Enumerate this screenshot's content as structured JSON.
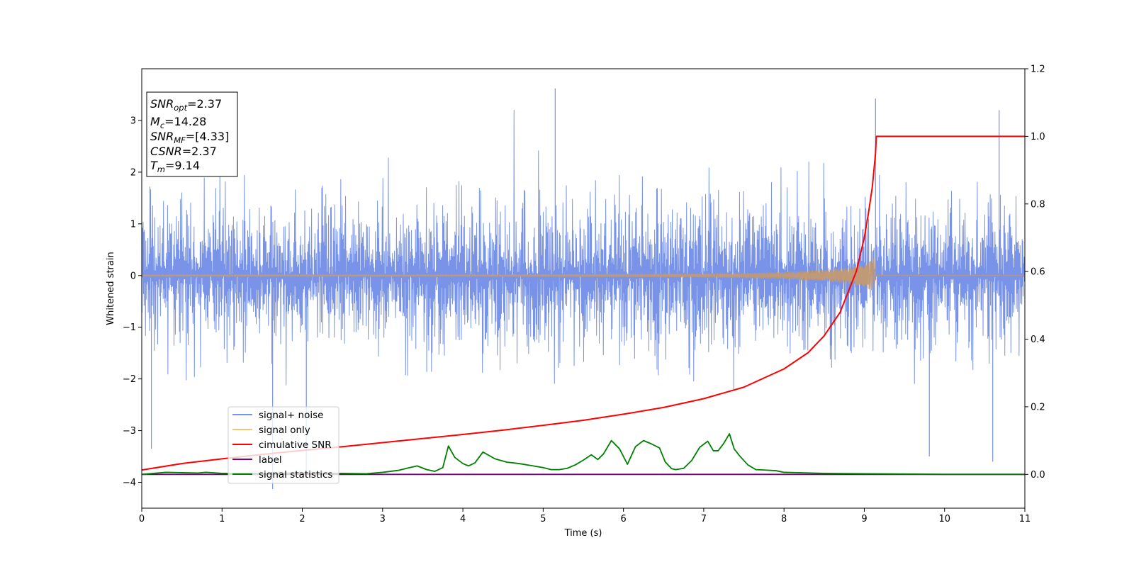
{
  "chart_data": {
    "type": "line",
    "xlabel": "Time (s)",
    "ylabel": "Whitened strain",
    "xlim": [
      0,
      11
    ],
    "ylim": [
      -4.5,
      4.0
    ],
    "y2lim": [
      -0.1,
      1.2
    ],
    "x_ticks": [
      0,
      1,
      2,
      3,
      4,
      5,
      6,
      7,
      8,
      9,
      10,
      11
    ],
    "y_ticks": [
      -4,
      -3,
      -2,
      -1,
      0,
      1,
      2,
      3
    ],
    "y2_ticks": [
      "0.0",
      "0.2",
      "0.4",
      "0.6",
      "0.8",
      "1.0",
      "1.2"
    ],
    "grid": false,
    "legend_placement": "lower-left",
    "info_box": {
      "snr_opt": {
        "label_main": "SNR",
        "label_sub": "opt",
        "value": "=2.37"
      },
      "mc": {
        "label_main": "M",
        "label_sub": "c",
        "value": "=14.28"
      },
      "snr_mf": {
        "label_main": "SNR",
        "label_sub": "MF",
        "value": "=[4.33]"
      },
      "csnr": {
        "label_main": "CSNR",
        "value": "=2.37"
      },
      "tm": {
        "label_main": "T",
        "label_sub": "m",
        "value": "=9.14"
      }
    },
    "merger_time": 9.14,
    "series": [
      {
        "name": "signal+ noise",
        "color": "#7893e8",
        "axis": "left",
        "description": "whitened strain, dense noise roughly within ±2.5 with spikes up to 3.6 and down to -4.1",
        "extreme_points": [
          [
            1.63,
            -4.13
          ],
          [
            5.15,
            3.62
          ],
          [
            9.14,
            3.42
          ],
          [
            9.81,
            -3.5
          ],
          [
            10.6,
            -3.6
          ],
          [
            10.68,
            3.2
          ],
          [
            0.12,
            -3.35
          ],
          [
            2.05,
            -3.9
          ]
        ]
      },
      {
        "name": "signal only",
        "color": "#f5c37a",
        "axis": "left",
        "description": "chirp waveform growing in amplitude until merger at t=9.14",
        "envelope": {
          "x": [
            0,
            4,
            6,
            7,
            7.5,
            8,
            8.5,
            8.8,
            9.0,
            9.1,
            9.14,
            9.15,
            11
          ],
          "amp": [
            0.02,
            0.02,
            0.03,
            0.04,
            0.05,
            0.07,
            0.11,
            0.16,
            0.22,
            0.3,
            0.38,
            0,
            0
          ]
        }
      },
      {
        "name": "cimulative SNR",
        "color": "#ff0000",
        "axis": "right",
        "x": [
          0,
          0.5,
          1,
          1.5,
          2,
          2.5,
          3,
          3.5,
          4,
          4.5,
          5,
          5.5,
          6,
          6.5,
          7,
          7.5,
          8,
          8.3,
          8.5,
          8.7,
          8.9,
          9.0,
          9.05,
          9.1,
          9.14,
          9.15,
          11
        ],
        "values": [
          0.013,
          0.032,
          0.046,
          0.059,
          0.071,
          0.082,
          0.094,
          0.106,
          0.118,
          0.131,
          0.145,
          0.16,
          0.178,
          0.198,
          0.224,
          0.258,
          0.312,
          0.36,
          0.41,
          0.48,
          0.6,
          0.7,
          0.77,
          0.85,
          0.95,
          1.0,
          1.0
        ]
      },
      {
        "name": "label",
        "color": "#800080",
        "axis": "right",
        "x": [
          0,
          11
        ],
        "values": [
          0.0,
          0.0
        ]
      },
      {
        "name": "signal statistics",
        "color": "#008000",
        "axis": "right",
        "x": [
          0,
          0.3,
          0.5,
          0.7,
          0.8,
          1.0,
          1.5,
          2.0,
          2.5,
          2.8,
          3.0,
          3.2,
          3.3,
          3.43,
          3.55,
          3.65,
          3.75,
          3.82,
          3.9,
          4.0,
          4.07,
          4.15,
          4.25,
          4.4,
          4.55,
          4.7,
          4.85,
          5.0,
          5.1,
          5.2,
          5.3,
          5.4,
          5.5,
          5.6,
          5.68,
          5.75,
          5.85,
          5.95,
          6.05,
          6.15,
          6.25,
          6.35,
          6.45,
          6.52,
          6.6,
          6.65,
          6.75,
          6.85,
          6.95,
          7.05,
          7.12,
          7.18,
          7.25,
          7.32,
          7.38,
          7.45,
          7.55,
          7.65,
          7.75,
          7.9,
          8.0,
          8.5,
          9.0,
          9.5,
          10.0,
          11.0
        ],
        "values": [
          0.0,
          0.006,
          0.005,
          0.004,
          0.006,
          0.003,
          0.003,
          0.004,
          0.003,
          0.002,
          0.006,
          0.012,
          0.018,
          0.025,
          0.014,
          0.009,
          0.02,
          0.084,
          0.05,
          0.032,
          0.025,
          0.034,
          0.066,
          0.046,
          0.036,
          0.032,
          0.026,
          0.02,
          0.014,
          0.014,
          0.018,
          0.028,
          0.042,
          0.058,
          0.044,
          0.06,
          0.1,
          0.076,
          0.03,
          0.082,
          0.1,
          0.09,
          0.078,
          0.037,
          0.017,
          0.014,
          0.018,
          0.041,
          0.08,
          0.098,
          0.07,
          0.07,
          0.092,
          0.12,
          0.075,
          0.054,
          0.028,
          0.014,
          0.013,
          0.011,
          0.006,
          0.003,
          0.002,
          0.001,
          0.0,
          0.0
        ]
      }
    ]
  }
}
